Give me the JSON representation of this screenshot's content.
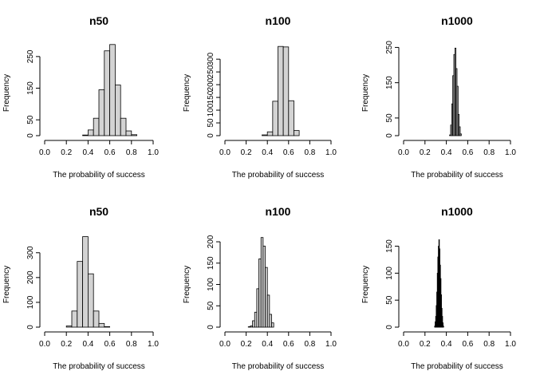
{
  "chart_data": [
    {
      "type": "bar",
      "title": "n50",
      "xlabel": "The probability of success",
      "ylabel": "Frequency",
      "xlim": [
        0,
        1
      ],
      "ylim": [
        0,
        290
      ],
      "xticks": [
        "0.0",
        "0.2",
        "0.4",
        "0.6",
        "0.8",
        "1.0"
      ],
      "yticks": [
        "0",
        "50",
        "150",
        "250"
      ],
      "bin_width": 0.05,
      "bins": [
        [
          0.35,
          0.4,
          2
        ],
        [
          0.4,
          0.45,
          18
        ],
        [
          0.45,
          0.5,
          55
        ],
        [
          0.5,
          0.55,
          145
        ],
        [
          0.55,
          0.6,
          268
        ],
        [
          0.6,
          0.65,
          288
        ],
        [
          0.65,
          0.7,
          160
        ],
        [
          0.7,
          0.75,
          55
        ],
        [
          0.75,
          0.8,
          15
        ],
        [
          0.8,
          0.85,
          3
        ]
      ]
    },
    {
      "type": "bar",
      "title": "n100",
      "xlabel": "The probability of success",
      "ylabel": "Frequency",
      "xlim": [
        0,
        1
      ],
      "ylim": [
        0,
        360
      ],
      "xticks": [
        "0.0",
        "0.2",
        "0.4",
        "0.6",
        "0.8",
        "1.0"
      ],
      "yticks": [
        "0",
        "50",
        "100",
        "150",
        "200",
        "250",
        "300"
      ],
      "bin_width": 0.05,
      "bins": [
        [
          0.35,
          0.4,
          3
        ],
        [
          0.4,
          0.45,
          15
        ],
        [
          0.45,
          0.5,
          135
        ],
        [
          0.5,
          0.55,
          350
        ],
        [
          0.55,
          0.6,
          348
        ],
        [
          0.6,
          0.65,
          137
        ],
        [
          0.65,
          0.7,
          20
        ]
      ]
    },
    {
      "type": "bar",
      "title": "n1000",
      "xlabel": "The probability of success",
      "ylabel": "Frequency",
      "xlim": [
        0,
        1
      ],
      "ylim": [
        0,
        260
      ],
      "xticks": [
        "0.0",
        "0.2",
        "0.4",
        "0.6",
        "0.8",
        "1.0"
      ],
      "yticks": [
        "0",
        "50",
        "150",
        "250"
      ],
      "bin_width": 0.01,
      "bins": [
        [
          0.43,
          0.44,
          2
        ],
        [
          0.44,
          0.45,
          30
        ],
        [
          0.45,
          0.46,
          90
        ],
        [
          0.46,
          0.47,
          170
        ],
        [
          0.47,
          0.48,
          230
        ],
        [
          0.48,
          0.49,
          248
        ],
        [
          0.49,
          0.5,
          190
        ],
        [
          0.5,
          0.51,
          140
        ],
        [
          0.51,
          0.52,
          60
        ],
        [
          0.52,
          0.53,
          25
        ],
        [
          0.53,
          0.54,
          5
        ]
      ]
    },
    {
      "type": "bar",
      "title": "n50",
      "xlabel": "The probability of success",
      "ylabel": "Frequency",
      "xlim": [
        0,
        1
      ],
      "ylim": [
        0,
        370
      ],
      "xticks": [
        "0.0",
        "0.2",
        "0.4",
        "0.6",
        "0.8",
        "1.0"
      ],
      "yticks": [
        "0",
        "100",
        "200",
        "300"
      ],
      "bin_width": 0.05,
      "bins": [
        [
          0.2,
          0.25,
          5
        ],
        [
          0.25,
          0.3,
          65
        ],
        [
          0.3,
          0.35,
          265
        ],
        [
          0.35,
          0.4,
          365
        ],
        [
          0.4,
          0.45,
          215
        ],
        [
          0.45,
          0.5,
          65
        ],
        [
          0.5,
          0.55,
          15
        ],
        [
          0.55,
          0.6,
          2
        ]
      ]
    },
    {
      "type": "bar",
      "title": "n100",
      "xlabel": "The probability of success",
      "ylabel": "Frequency",
      "xlim": [
        0,
        1
      ],
      "ylim": [
        0,
        215
      ],
      "xticks": [
        "0.0",
        "0.2",
        "0.4",
        "0.6",
        "0.8",
        "1.0"
      ],
      "yticks": [
        "0",
        "50",
        "100",
        "150",
        "200"
      ],
      "bin_width": 0.02,
      "bins": [
        [
          0.22,
          0.24,
          1
        ],
        [
          0.24,
          0.26,
          3
        ],
        [
          0.26,
          0.28,
          15
        ],
        [
          0.28,
          0.3,
          35
        ],
        [
          0.3,
          0.32,
          90
        ],
        [
          0.32,
          0.34,
          160
        ],
        [
          0.34,
          0.36,
          210
        ],
        [
          0.36,
          0.38,
          190
        ],
        [
          0.38,
          0.4,
          140
        ],
        [
          0.4,
          0.42,
          75
        ],
        [
          0.42,
          0.44,
          30
        ],
        [
          0.44,
          0.46,
          10
        ]
      ]
    },
    {
      "type": "bar",
      "title": "n1000",
      "xlabel": "The probability of success",
      "ylabel": "Frequency",
      "xlim": [
        0,
        1
      ],
      "ylim": [
        0,
        170
      ],
      "xticks": [
        "0.0",
        "0.2",
        "0.4",
        "0.6",
        "0.8",
        "1.0"
      ],
      "yticks": [
        "0",
        "50",
        "100",
        "150"
      ],
      "bin_width": 0.005,
      "bins": [
        [
          0.29,
          0.295,
          2
        ],
        [
          0.295,
          0.3,
          10
        ],
        [
          0.3,
          0.305,
          20
        ],
        [
          0.305,
          0.31,
          40
        ],
        [
          0.31,
          0.315,
          65
        ],
        [
          0.315,
          0.32,
          100
        ],
        [
          0.32,
          0.325,
          130
        ],
        [
          0.325,
          0.33,
          150
        ],
        [
          0.33,
          0.335,
          162
        ],
        [
          0.335,
          0.34,
          145
        ],
        [
          0.34,
          0.345,
          115
        ],
        [
          0.345,
          0.35,
          90
        ],
        [
          0.35,
          0.355,
          60
        ],
        [
          0.355,
          0.36,
          35
        ],
        [
          0.36,
          0.365,
          20
        ],
        [
          0.365,
          0.37,
          8
        ],
        [
          0.37,
          0.375,
          2
        ]
      ]
    }
  ]
}
